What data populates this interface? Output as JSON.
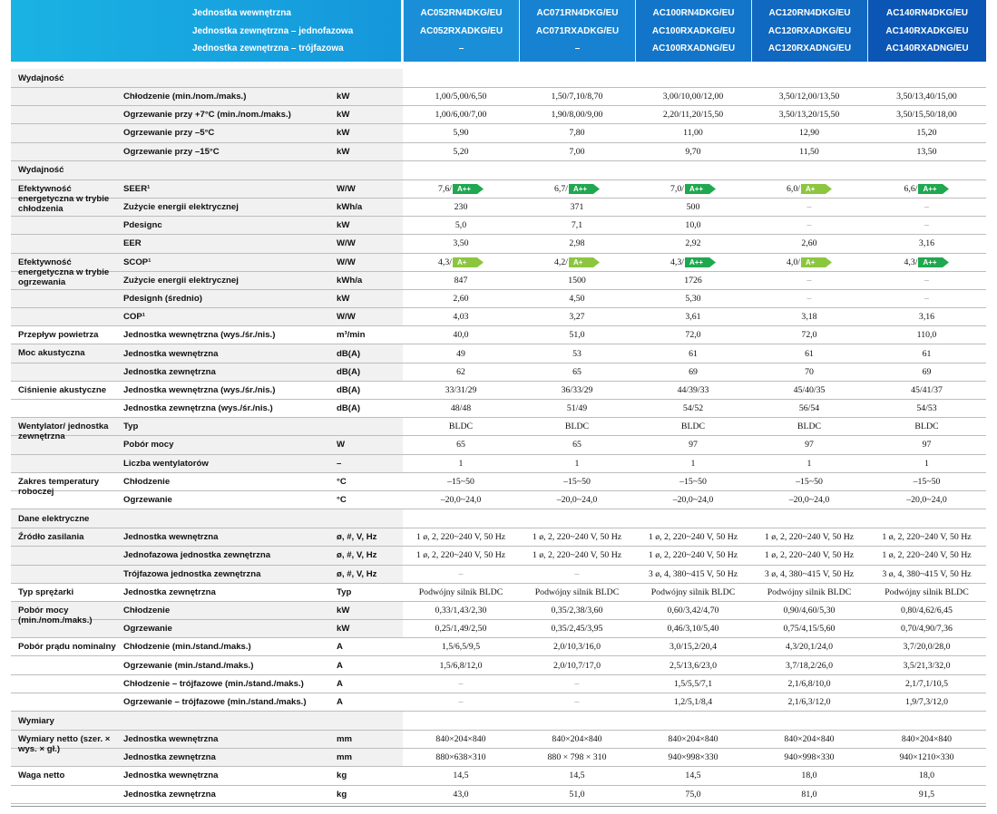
{
  "header": {
    "left_lines": [
      "Jednostka wewnętrzna",
      "Jednostka zewnętrzna – jednofazowa",
      "Jednostka zewnętrzna – trójfazowa"
    ],
    "models": [
      [
        "AC052RN4DKG/EU",
        "AC052RXADKG/EU",
        "–"
      ],
      [
        "AC071RN4DKG/EU",
        "AC071RXADKG/EU",
        "–"
      ],
      [
        "AC100RN4DKG/EU",
        "AC100RXADKG/EU",
        "AC100RXADNG/EU"
      ],
      [
        "AC120RN4DKG/EU",
        "AC120RXADKG/EU",
        "AC120RXADNG/EU"
      ],
      [
        "AC140RN4DKG/EU",
        "AC140RXADKG/EU",
        "AC140RXADNG/EU"
      ]
    ],
    "colors": [
      "#1a8fd8",
      "#1682d1",
      "#1375c9",
      "#1068c0",
      "#0b56b4"
    ]
  },
  "rows": [
    {
      "section": "Wydajność"
    },
    {
      "cat": "",
      "label": "Chłodzenie (min./nom./maks.)",
      "unit": "kW",
      "values": [
        "1,00/5,00/6,50",
        "1,50/7,10/8,70",
        "3,00/10,00/12,00",
        "3,50/12,00/13,50",
        "3,50/13,40/15,00"
      ],
      "bg": true
    },
    {
      "cat": "",
      "label": "Ogrzewanie przy +7°C (min./nom./maks.)",
      "unit": "kW",
      "values": [
        "1,00/6,00/7,00",
        "1,90/8,00/9,00",
        "2,20/11,20/15,50",
        "3,50/13,20/15,50",
        "3,50/15,50/18,00"
      ],
      "bg": true
    },
    {
      "cat": "",
      "label": "Ogrzewanie przy –5°C",
      "unit": "kW",
      "values": [
        "5,90",
        "7,80",
        "11,00",
        "12,90",
        "15,20"
      ],
      "bg": true
    },
    {
      "cat": "",
      "label": "Ogrzewanie przy –15°C",
      "unit": "kW",
      "values": [
        "5,20",
        "7,00",
        "9,70",
        "11,50",
        "13,50"
      ],
      "bg": true
    },
    {
      "section": "Wydajność"
    },
    {
      "cat": "Efektywność energetyczna w trybie chłodzenia",
      "label": "SEER¹",
      "unit": "W/W",
      "values": [
        "7,6/",
        "6,7/",
        "7,0/",
        "6,0/",
        "6,6/"
      ],
      "badges": [
        "A++",
        "A++",
        "A++",
        "A+",
        "A++"
      ],
      "bg": true
    },
    {
      "cat": "",
      "label": "Zużycie energii elektrycznej",
      "unit": "kWh/a",
      "values": [
        "230",
        "371",
        "500",
        "–",
        "–"
      ],
      "bg": true
    },
    {
      "cat": "",
      "label": "Pdesignc",
      "unit": "kW",
      "values": [
        "5,0",
        "7,1",
        "10,0",
        "–",
        "–"
      ],
      "bg": true
    },
    {
      "cat": "",
      "label": "EER",
      "unit": "W/W",
      "values": [
        "3,50",
        "2,98",
        "2,92",
        "2,60",
        "3,16"
      ],
      "bg": true
    },
    {
      "cat": "Efektywność energetyczna w trybie ogrzewania",
      "label": "SCOP¹",
      "unit": "W/W",
      "values": [
        "4,3/",
        "4,2/",
        "4,3/",
        "4,0/",
        "4,3/"
      ],
      "badges": [
        "A+",
        "A+",
        "A++",
        "A+",
        "A++"
      ],
      "bg": true
    },
    {
      "cat": "",
      "label": "Zużycie energii elektrycznej",
      "unit": "kWh/a",
      "values": [
        "847",
        "1500",
        "1726",
        "–",
        "–"
      ],
      "bg": true
    },
    {
      "cat": "",
      "label": "Pdesignh (średnio)",
      "unit": "kW",
      "values": [
        "2,60",
        "4,50",
        "5,30",
        "–",
        "–"
      ],
      "bg": true
    },
    {
      "cat": "",
      "label": "COP¹",
      "unit": "W/W",
      "values": [
        "4,03",
        "3,27",
        "3,61",
        "3,18",
        "3,16"
      ],
      "bg": true
    },
    {
      "cat": "Przepływ powietrza",
      "label": "Jednostka wewnętrzna (wys./śr./nis.)",
      "unit": "m³/min",
      "values": [
        "40,0",
        "51,0",
        "72,0",
        "72,0",
        "110,0"
      ]
    },
    {
      "cat": "Moc akustyczna",
      "label": "Jednostka wewnętrzna",
      "unit": "dB(A)",
      "values": [
        "49",
        "53",
        "61",
        "61",
        "61"
      ],
      "bg": true
    },
    {
      "cat": "",
      "label": "Jednostka zewnętrzna",
      "unit": "dB(A)",
      "values": [
        "62",
        "65",
        "69",
        "70",
        "69"
      ],
      "bg": true
    },
    {
      "cat": "Ciśnienie akustyczne",
      "label": "Jednostka wewnętrzna (wys./śr./nis.)",
      "unit": "dB(A)",
      "values": [
        "33/31/29",
        "36/33/29",
        "44/39/33",
        "45/40/35",
        "45/41/37"
      ]
    },
    {
      "cat": "",
      "label": "Jednostka zewnętrzna (wys./śr./nis.)",
      "unit": "dB(A)",
      "values": [
        "48/48",
        "51/49",
        "54/52",
        "56/54",
        "54/53"
      ]
    },
    {
      "cat": "Wentylator/ jednostka zewnętrzna",
      "label": "Typ",
      "unit": "",
      "values": [
        "BLDC",
        "BLDC",
        "BLDC",
        "BLDC",
        "BLDC"
      ],
      "bg": true
    },
    {
      "cat": "",
      "label": "Pobór mocy",
      "unit": "W",
      "values": [
        "65",
        "65",
        "97",
        "97",
        "97"
      ],
      "bg": true
    },
    {
      "cat": "",
      "label": "Liczba wentylatorów",
      "unit": "–",
      "values": [
        "1",
        "1",
        "1",
        "1",
        "1"
      ],
      "bg": true
    },
    {
      "cat": "Zakres temperatury roboczej",
      "label": "Chłodzenie",
      "unit": "°C",
      "values": [
        "–15~50",
        "–15~50",
        "–15~50",
        "–15~50",
        "–15~50"
      ]
    },
    {
      "cat": "",
      "label": "Ogrzewanie",
      "unit": "°C",
      "values": [
        "–20,0~24,0",
        "–20,0~24,0",
        "–20,0~24,0",
        "–20,0~24,0",
        "–20,0~24,0"
      ]
    },
    {
      "section": "Dane elektryczne"
    },
    {
      "cat": "Źródło zasilania",
      "label": "Jednostka wewnętrzna",
      "unit": "ø, #, V, Hz",
      "values": [
        "1 ø, 2, 220~240 V, 50 Hz",
        "1 ø, 2, 220~240 V, 50 Hz",
        "1 ø, 2, 220~240 V, 50 Hz",
        "1 ø, 2, 220~240 V, 50 Hz",
        "1 ø, 2, 220~240 V, 50 Hz"
      ],
      "bg": true
    },
    {
      "cat": "",
      "label": "Jednofazowa jednostka zewnętrzna",
      "unit": "ø, #, V, Hz",
      "values": [
        "1 ø, 2, 220~240 V, 50 Hz",
        "1 ø, 2, 220~240 V, 50 Hz",
        "1 ø, 2, 220~240 V, 50 Hz",
        "1 ø, 2, 220~240 V, 50 Hz",
        "1 ø, 2, 220~240 V, 50 Hz"
      ],
      "bg": true
    },
    {
      "cat": "",
      "label": "Trójfazowa jednostka zewnętrzna",
      "unit": "ø, #, V, Hz",
      "values": [
        "–",
        "–",
        "3 ø, 4, 380~415 V, 50 Hz",
        "3 ø, 4, 380~415 V, 50 Hz",
        "3 ø, 4, 380~415 V, 50 Hz"
      ],
      "bg": true
    },
    {
      "cat": "Typ sprężarki",
      "label": "Jednostka zewnętrzna",
      "unit": "Typ",
      "values": [
        "Podwójny silnik BLDC",
        "Podwójny silnik BLDC",
        "Podwójny silnik BLDC",
        "Podwójny silnik BLDC",
        "Podwójny silnik BLDC"
      ]
    },
    {
      "cat": "Pobór mocy (min./nom./maks.)",
      "label": "Chłodzenie",
      "unit": "kW",
      "values": [
        "0,33/1,43/2,30",
        "0,35/2,38/3,60",
        "0,60/3,42/4,70",
        "0,90/4,60/5,30",
        "0,80/4,62/6,45"
      ],
      "bg": true
    },
    {
      "cat": "",
      "label": "Ogrzewanie",
      "unit": "kW",
      "values": [
        "0,25/1,49/2,50",
        "0,35/2,45/3,95",
        "0,46/3,10/5,40",
        "0,75/4,15/5,60",
        "0,70/4,90/7,36"
      ],
      "bg": true
    },
    {
      "cat": "Pobór prądu nominalny",
      "label": "Chłodzenie (min./stand./maks.)",
      "unit": "A",
      "values": [
        "1,5/6,5/9,5",
        "2,0/10,3/16,0",
        "3,0/15,2/20,4",
        "4,3/20,1/24,0",
        "3,7/20,0/28,0"
      ]
    },
    {
      "cat": "",
      "label": "Ogrzewanie (min./stand./maks.)",
      "unit": "A",
      "values": [
        "1,5/6,8/12,0",
        "2,0/10,7/17,0",
        "2,5/13,6/23,0",
        "3,7/18,2/26,0",
        "3,5/21,3/32,0"
      ]
    },
    {
      "cat": "",
      "label": "Chłodzenie – trójfazowe (min./stand./maks.)",
      "unit": "A",
      "values": [
        "–",
        "–",
        "1,5/5,5/7,1",
        "2,1/6,8/10,0",
        "2,1/7,1/10,5"
      ]
    },
    {
      "cat": "",
      "label": "Ogrzewanie – trójfazowe (min./stand./maks.)",
      "unit": "A",
      "values": [
        "–",
        "–",
        "1,2/5,1/8,4",
        "2,1/6,3/12,0",
        "1,9/7,3/12,0"
      ]
    },
    {
      "section": "Wymiary"
    },
    {
      "cat": "Wymiary netto (szer. × wys. × gł.)",
      "label": "Jednostka wewnętrzna",
      "unit": "mm",
      "values": [
        "840×204×840",
        "840×204×840",
        "840×204×840",
        "840×204×840",
        "840×204×840"
      ],
      "bg": true
    },
    {
      "cat": "",
      "label": "Jednostka zewnętrzna",
      "unit": "mm",
      "values": [
        "880×638×310",
        "880 × 798 × 310",
        "940×998×330",
        "940×998×330",
        "940×1210×330"
      ],
      "bg": true
    },
    {
      "cat": "Waga netto",
      "label": "Jednostka wewnętrzna",
      "unit": "kg",
      "values": [
        "14,5",
        "14,5",
        "14,5",
        "18,0",
        "18,0"
      ]
    },
    {
      "cat": "",
      "label": "Jednostka zewnętrzna",
      "unit": "kg",
      "values": [
        "43,0",
        "51,0",
        "75,0",
        "81,0",
        "91,5"
      ]
    }
  ],
  "colors": {
    "group_bg": "#f1f1f1",
    "badge_app": "#1fa84f",
    "badge_ap": "#8cc63f"
  }
}
